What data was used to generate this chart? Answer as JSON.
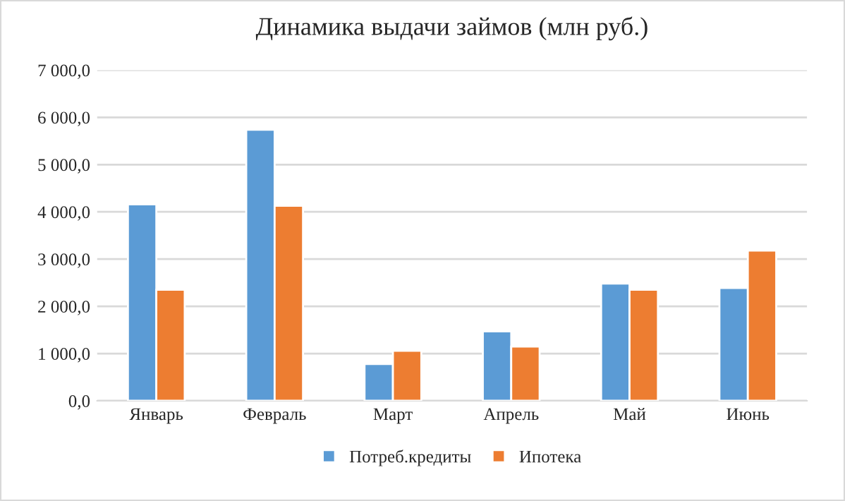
{
  "chart_data": {
    "type": "bar",
    "title": "Динамика выдачи займов (млн руб.)",
    "categories": [
      "Январь",
      "Февраль",
      "Март",
      "Апрель",
      "Май",
      "Июнь"
    ],
    "series": [
      {
        "name": "Потреб.кредиты",
        "color": "#5b9bd5",
        "values": [
          4160,
          5740,
          780,
          1470,
          2480,
          2390
        ]
      },
      {
        "name": "Ипотека",
        "color": "#ed7d31",
        "values": [
          2350,
          4130,
          1060,
          1150,
          2350,
          3180
        ]
      }
    ],
    "ylim": [
      0,
      7000
    ],
    "yticks": [
      {
        "value": 0,
        "label": "0,0"
      },
      {
        "value": 1000,
        "label": "1 000,0"
      },
      {
        "value": 2000,
        "label": "2 000,0"
      },
      {
        "value": 3000,
        "label": "3 000,0"
      },
      {
        "value": 4000,
        "label": "4 000,0"
      },
      {
        "value": 5000,
        "label": "5 000,0"
      },
      {
        "value": 6000,
        "label": "6 000,0"
      },
      {
        "value": 7000,
        "label": "7 000,0"
      }
    ],
    "grid": "y",
    "legend": "bottom"
  }
}
